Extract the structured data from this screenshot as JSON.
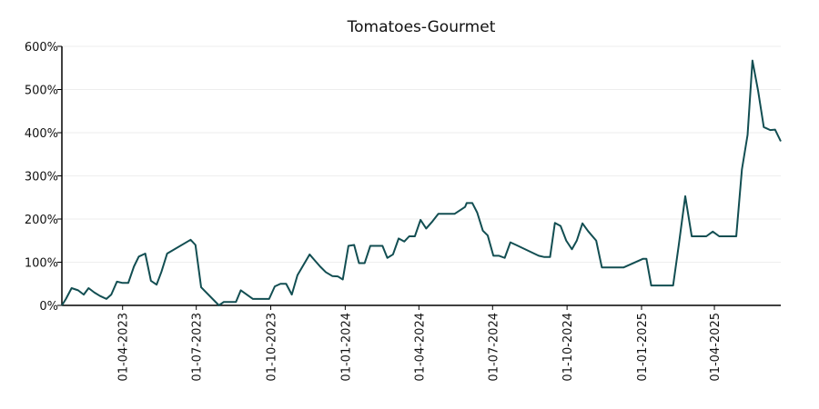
{
  "chart_data": {
    "type": "line",
    "title": "Tomatoes-Gourmet",
    "x": [
      "16-01-2023",
      "21-01-2023",
      "28-01-2023",
      "05-02-2023",
      "12-02-2023",
      "18-02-2023",
      "25-02-2023",
      "04-03-2023",
      "12-03-2023",
      "18-03-2023",
      "25-03-2023",
      "01-04-2023",
      "08-04-2023",
      "15-04-2023",
      "21-04-2023",
      "29-04-2023",
      "06-05-2023",
      "13-05-2023",
      "19-05-2023",
      "26-05-2023",
      "24-06-2023",
      "30-06-2023",
      "07-07-2023",
      "29-07-2023",
      "04-08-2023",
      "12-08-2023",
      "19-08-2023",
      "25-08-2023",
      "09-09-2023",
      "16-09-2023",
      "29-09-2023",
      "06-10-2023",
      "13-10-2023",
      "20-10-2023",
      "27-10-2023",
      "03-11-2023",
      "18-11-2023",
      "24-11-2023",
      "01-12-2023",
      "08-12-2023",
      "16-12-2023",
      "23-12-2023",
      "29-12-2023",
      "05-01-2024",
      "12-01-2024",
      "18-01-2024",
      "25-01-2024",
      "01-02-2024",
      "16-02-2024",
      "22-02-2024",
      "29-02-2024",
      "07-03-2024",
      "14-03-2024",
      "20-03-2024",
      "27-03-2024",
      "03-04-2024",
      "10-04-2024",
      "17-04-2024",
      "25-04-2024",
      "15-05-2024",
      "28-05-2024",
      "30-05-2024",
      "06-06-2024",
      "12-06-2024",
      "19-06-2024",
      "25-06-2024",
      "02-07-2024",
      "09-07-2024",
      "16-07-2024",
      "23-07-2024",
      "30-07-2024",
      "27-08-2024",
      "03-09-2024",
      "10-09-2024",
      "16-09-2024",
      "23-09-2024",
      "30-09-2024",
      "07-10-2024",
      "13-10-2024",
      "20-10-2024",
      "27-10-2024",
      "06-11-2024",
      "13-11-2024",
      "19-11-2024",
      "10-12-2024",
      "03-01-2025",
      "07-01-2025",
      "13-01-2025",
      "09-02-2025",
      "16-02-2025",
      "24-02-2025",
      "04-03-2025",
      "22-03-2025",
      "30-03-2025",
      "07-04-2025",
      "13-04-2025",
      "28-04-2025",
      "05-05-2025",
      "12-05-2025",
      "18-05-2025",
      "25-05-2025",
      "01-06-2025",
      "09-06-2025",
      "15-06-2025",
      "22-06-2025"
    ],
    "series": [
      {
        "name": "Tomatoes-Gourmet",
        "color": "#124e52",
        "values": [
          0,
          15,
          40,
          35,
          25,
          40,
          30,
          22,
          15,
          25,
          55,
          52,
          52,
          90,
          113,
          120,
          57,
          48,
          78,
          120,
          152,
          140,
          42,
          0,
          8,
          8,
          8,
          35,
          15,
          15,
          15,
          44,
          50,
          50,
          25,
          70,
          118,
          105,
          90,
          77,
          68,
          67,
          60,
          138,
          140,
          98,
          98,
          138,
          138,
          110,
          118,
          155,
          148,
          160,
          160,
          198,
          178,
          193,
          212,
          212,
          228,
          237,
          237,
          215,
          173,
          162,
          115,
          115,
          110,
          146,
          140,
          115,
          112,
          112,
          191,
          184,
          150,
          130,
          150,
          190,
          172,
          150,
          88,
          88,
          88,
          108,
          108,
          46,
          46,
          140,
          253,
          160,
          160,
          171,
          160,
          160,
          160,
          315,
          395,
          567,
          497,
          413,
          406,
          407,
          380
        ]
      }
    ],
    "xlim": [
      "16-01-2023",
      "22-06-2025"
    ],
    "xticks": [
      "01-04-2023",
      "01-07-2023",
      "01-10-2023",
      "01-01-2024",
      "01-04-2024",
      "01-07-2024",
      "01-10-2024",
      "01-01-2025",
      "01-04-2025"
    ],
    "ylim": [
      0,
      600
    ],
    "yticks": [
      {
        "value": 0,
        "label": "0%"
      },
      {
        "value": 100,
        "label": "100%"
      },
      {
        "value": 200,
        "label": "200%"
      },
      {
        "value": 300,
        "label": "300%"
      },
      {
        "value": 400,
        "label": "400%"
      },
      {
        "value": 500,
        "label": "500%"
      },
      {
        "value": 600,
        "label": "600%"
      }
    ],
    "grid": true
  }
}
